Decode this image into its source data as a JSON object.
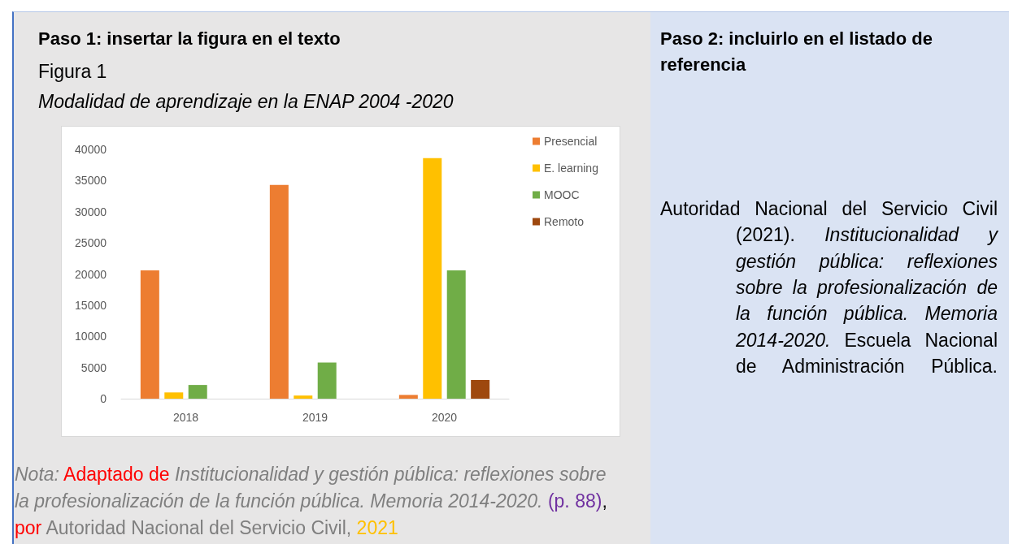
{
  "chart_data": {
    "type": "bar",
    "title": "Modalidad de aprendizaje en la ENAP 2004 -2020",
    "annotations": [
      "Paso 1: insertar la figura en el texto",
      "Figura 1",
      "Paso 2: incluirlo en el listado de referencia",
      "Autoridad Nacional del Servicio Civil",
      "(2021).",
      "Institucionalidad y",
      "gestión pública: reflexiones",
      "sobre la profesionalización de",
      "la función pública. Memoria",
      "2014-2020.",
      "Escuela Nacional",
      "de Administración Pública.",
      "Nota:",
      "Adaptado de",
      "Institucionalidad y gestión pública: reflexiones sobre",
      "la profesionalización de la función pública. Memoria 2014-2020.",
      "(p. 88)",
      ",",
      "por",
      "Autoridad Nacional del Servicio Civil,",
      "2021"
    ],
    "categories": [
      "2018",
      "2019",
      "2020"
    ],
    "series": [
      {
        "name": "Presencial",
        "color": "#ed7d31",
        "values": [
          20600,
          34300,
          600
        ]
      },
      {
        "name": "E. learning",
        "color": "#ffc000",
        "values": [
          1000,
          500,
          38600
        ]
      },
      {
        "name": "MOOC",
        "color": "#70ad47",
        "values": [
          2200,
          5800,
          20600
        ]
      },
      {
        "name": "Remoto",
        "color": "#9e480e",
        "values": [
          null,
          null,
          3000
        ]
      }
    ],
    "ylim": [
      0,
      40000
    ],
    "yticks": [
      0,
      5000,
      10000,
      15000,
      20000,
      25000,
      30000,
      35000,
      40000
    ],
    "grid": false,
    "legend": "top right"
  }
}
